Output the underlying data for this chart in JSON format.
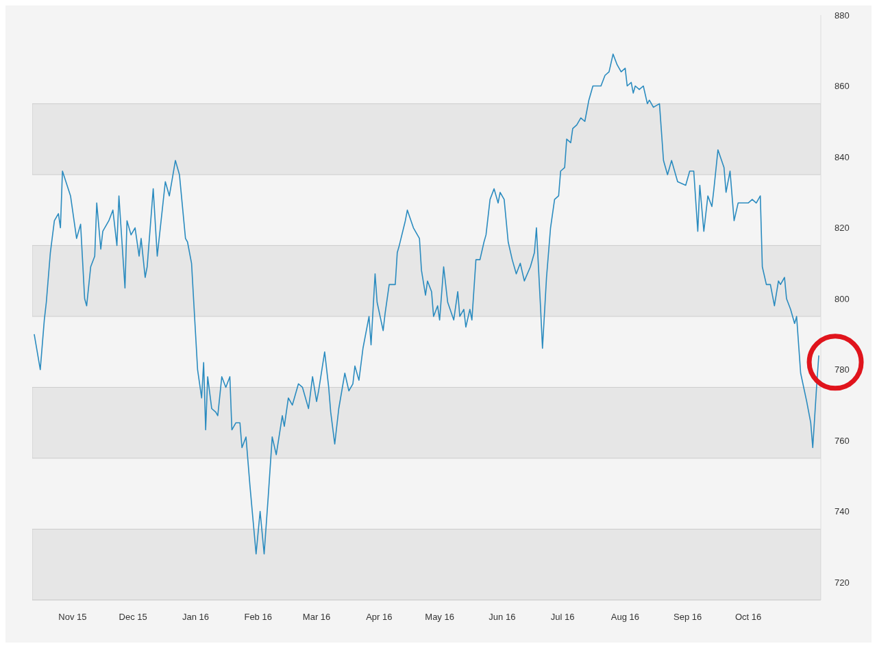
{
  "chart_data": {
    "type": "line",
    "x": [
      "2015-10-13",
      "2015-10-16",
      "2015-10-18",
      "2015-10-19",
      "2015-10-21",
      "2015-10-23",
      "2015-10-25",
      "2015-10-26",
      "2015-10-27",
      "2015-10-31",
      "2015-11-03",
      "2015-11-05",
      "2015-11-07",
      "2015-11-08",
      "2015-11-10",
      "2015-11-12",
      "2015-11-13",
      "2015-11-15",
      "2015-11-16",
      "2015-11-19",
      "2015-11-21",
      "2015-11-23",
      "2015-11-24",
      "2015-11-27",
      "2015-11-28",
      "2015-11-30",
      "2015-12-02",
      "2015-12-04",
      "2015-12-05",
      "2015-12-07",
      "2015-12-08",
      "2015-12-11",
      "2015-12-13",
      "2015-12-17",
      "2015-12-19",
      "2015-12-22",
      "2015-12-24",
      "2015-12-27",
      "2015-12-28",
      "2015-12-30",
      "2016-01-01",
      "2016-01-02",
      "2016-01-04",
      "2016-01-05",
      "2016-01-06",
      "2016-01-07",
      "2016-01-09",
      "2016-01-11",
      "2016-01-12",
      "2016-01-14",
      "2016-01-16",
      "2016-01-18",
      "2016-01-19",
      "2016-01-21",
      "2016-01-23",
      "2016-01-24",
      "2016-01-26",
      "2016-01-28",
      "2016-01-31",
      "2016-02-02",
      "2016-02-04",
      "2016-02-06",
      "2016-02-08",
      "2016-02-10",
      "2016-02-13",
      "2016-02-14",
      "2016-02-16",
      "2016-02-18",
      "2016-02-21",
      "2016-02-23",
      "2016-02-26",
      "2016-02-28",
      "2016-03-01",
      "2016-03-02",
      "2016-03-05",
      "2016-03-07",
      "2016-03-08",
      "2016-03-10",
      "2016-03-12",
      "2016-03-15",
      "2016-03-17",
      "2016-03-19",
      "2016-03-20",
      "2016-03-22",
      "2016-03-24",
      "2016-03-27",
      "2016-03-28",
      "2016-03-30",
      "2016-03-31",
      "2016-04-03",
      "2016-04-04",
      "2016-04-06",
      "2016-04-09",
      "2016-04-10",
      "2016-04-11",
      "2016-04-14",
      "2016-04-15",
      "2016-04-18",
      "2016-04-21",
      "2016-04-22",
      "2016-04-24",
      "2016-04-25",
      "2016-04-27",
      "2016-04-28",
      "2016-04-30",
      "2016-05-01",
      "2016-05-03",
      "2016-05-05",
      "2016-05-08",
      "2016-05-10",
      "2016-05-11",
      "2016-05-13",
      "2016-05-14",
      "2016-05-16",
      "2016-05-17",
      "2016-05-19",
      "2016-05-21",
      "2016-05-23",
      "2016-05-24",
      "2016-05-26",
      "2016-05-28",
      "2016-05-30",
      "2016-05-31",
      "2016-06-02",
      "2016-06-04",
      "2016-06-06",
      "2016-06-08",
      "2016-06-10",
      "2016-06-12",
      "2016-06-15",
      "2016-06-17",
      "2016-06-18",
      "2016-06-20",
      "2016-06-21",
      "2016-06-23",
      "2016-06-25",
      "2016-06-27",
      "2016-06-29",
      "2016-06-30",
      "2016-07-02",
      "2016-07-03",
      "2016-07-05",
      "2016-07-06",
      "2016-07-08",
      "2016-07-10",
      "2016-07-12",
      "2016-07-14",
      "2016-07-16",
      "2016-07-18",
      "2016-07-20",
      "2016-07-22",
      "2016-07-24",
      "2016-07-26",
      "2016-07-28",
      "2016-07-30",
      "2016-08-01",
      "2016-08-02",
      "2016-08-04",
      "2016-08-05",
      "2016-08-06",
      "2016-08-08",
      "2016-08-10",
      "2016-08-12",
      "2016-08-13",
      "2016-08-15",
      "2016-08-18",
      "2016-08-20",
      "2016-08-22",
      "2016-08-24",
      "2016-08-27",
      "2016-08-31",
      "2016-09-02",
      "2016-09-04",
      "2016-09-06",
      "2016-09-07",
      "2016-09-09",
      "2016-09-11",
      "2016-09-13",
      "2016-09-14",
      "2016-09-16",
      "2016-09-19",
      "2016-09-20",
      "2016-09-22",
      "2016-09-24",
      "2016-09-26",
      "2016-09-29",
      "2016-10-01",
      "2016-10-03",
      "2016-10-05",
      "2016-10-07",
      "2016-10-08",
      "2016-10-10",
      "2016-10-12",
      "2016-10-14",
      "2016-10-16",
      "2016-10-17",
      "2016-10-19",
      "2016-10-20",
      "2016-10-22",
      "2016-10-24",
      "2016-10-25",
      "2016-10-27",
      "2016-10-30",
      "2016-11-01",
      "2016-11-02",
      "2016-11-04",
      "2016-11-05"
    ],
    "series": [
      {
        "color": "#2a8bbf",
        "values": [
          790,
          780,
          794,
          799,
          813,
          822,
          824,
          820,
          836,
          829,
          817,
          821,
          800,
          798,
          809,
          812,
          827,
          814,
          819,
          822,
          825,
          815,
          829,
          803,
          822,
          818,
          820,
          812,
          817,
          806,
          809,
          831,
          812,
          833,
          829,
          839,
          835,
          817,
          816,
          810,
          790,
          780,
          772,
          782,
          763,
          778,
          769,
          768,
          767,
          778,
          775,
          778,
          763,
          765,
          765,
          758,
          761,
          747,
          728,
          740,
          728,
          744,
          761,
          756,
          767,
          764,
          772,
          770,
          776,
          775,
          769,
          778,
          771,
          774,
          785,
          775,
          768,
          759,
          769,
          779,
          774,
          776,
          781,
          777,
          786,
          795,
          787,
          807,
          799,
          791,
          796,
          804,
          804,
          813,
          815,
          822,
          825,
          820,
          817,
          808,
          801,
          805,
          802,
          795,
          798,
          794,
          809,
          799,
          794,
          802,
          795,
          797,
          792,
          797,
          794,
          811,
          811,
          816,
          818,
          828,
          831,
          827,
          830,
          828,
          816,
          811,
          807,
          810,
          805,
          809,
          813,
          820,
          798,
          786,
          806,
          820,
          828,
          829,
          836,
          837,
          845,
          844,
          848,
          849,
          851,
          850,
          856,
          860,
          860,
          860,
          863,
          864,
          869,
          866,
          864,
          865,
          860,
          861,
          858,
          860,
          859,
          860,
          855,
          856,
          854,
          855,
          839,
          835,
          839,
          833,
          832,
          836,
          836,
          819,
          832,
          819,
          829,
          826,
          831,
          842,
          837,
          830,
          836,
          822,
          827,
          827,
          827,
          828,
          827,
          829,
          809,
          804,
          804,
          798,
          805,
          804,
          806,
          800,
          797,
          793,
          795,
          779,
          771,
          765,
          758,
          776,
          784
        ]
      }
    ],
    "xlim": [
      "2015-10-12",
      "2016-11-06"
    ],
    "xticks": [
      {
        "value": "2015-11-01",
        "label": "Nov 15"
      },
      {
        "value": "2015-12-01",
        "label": "Dec 15"
      },
      {
        "value": "2016-01-01",
        "label": "Jan 16"
      },
      {
        "value": "2016-02-01",
        "label": "Feb 16"
      },
      {
        "value": "2016-03-01",
        "label": "Mar 16"
      },
      {
        "value": "2016-04-01",
        "label": "Apr 16"
      },
      {
        "value": "2016-05-01",
        "label": "May 16"
      },
      {
        "value": "2016-06-01",
        "label": "Jun 16"
      },
      {
        "value": "2016-07-01",
        "label": "Jul 16"
      },
      {
        "value": "2016-08-01",
        "label": "Aug 16"
      },
      {
        "value": "2016-09-01",
        "label": "Sep 16"
      },
      {
        "value": "2016-10-01",
        "label": "Oct 16"
      }
    ],
    "ylim": [
      715,
      880
    ],
    "yticks": [
      720,
      740,
      760,
      780,
      800,
      820,
      840,
      860,
      880
    ],
    "bands": [
      {
        "axis": "y",
        "from": 715,
        "to": 735,
        "color": "#e6e6e6"
      },
      {
        "axis": "y",
        "from": 755,
        "to": 775,
        "color": "#e6e6e6"
      },
      {
        "axis": "y",
        "from": 795,
        "to": 815,
        "color": "#e6e6e6"
      },
      {
        "axis": "y",
        "from": 835,
        "to": 855,
        "color": "#e6e6e6"
      }
    ],
    "marker": "none",
    "line_style": "solid"
  }
}
